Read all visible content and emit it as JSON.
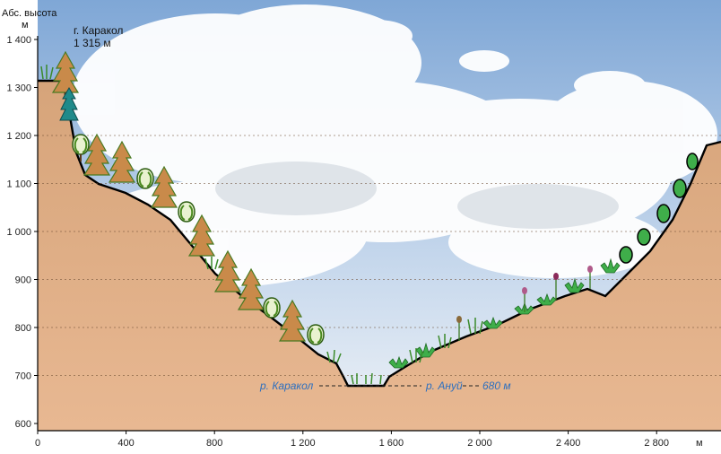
{
  "diagram": {
    "y_axis": {
      "title_line1": "Абс. высота",
      "title_line2": "м",
      "ticks": [
        {
          "label": "1 400",
          "value": 1400
        },
        {
          "label": "1 300",
          "value": 1300
        },
        {
          "label": "1 200",
          "value": 1200
        },
        {
          "label": "1 100",
          "value": 1100
        },
        {
          "label": "1 000",
          "value": 1000
        },
        {
          "label": "900",
          "value": 900
        },
        {
          "label": "800",
          "value": 800
        },
        {
          "label": "700",
          "value": 700
        },
        {
          "label": "600",
          "value": 600
        }
      ]
    },
    "x_axis": {
      "unit": "м",
      "ticks": [
        {
          "label": "0",
          "value": 0
        },
        {
          "label": "400",
          "value": 400
        },
        {
          "label": "800",
          "value": 800
        },
        {
          "label": "1 200",
          "value": 1200
        },
        {
          "label": "1 600",
          "value": 1600
        },
        {
          "label": "2 000",
          "value": 2000
        },
        {
          "label": "2 400",
          "value": 2400
        },
        {
          "label": "2 800",
          "value": 2800
        }
      ]
    },
    "peak": {
      "line1": "г. Каракол",
      "line2": "1 315 м"
    },
    "rivers": {
      "left": "р. Каракол",
      "right": "р. Ануй",
      "elevation": "680 м"
    },
    "colors": {
      "terrain": "#d9a67e",
      "sky": "#8fb3d9",
      "river_text": "#2d6fbf",
      "conifer": "#c98a4a",
      "spruce": "#1f8a8a",
      "deciduous": "#7bbf3a"
    }
  }
}
